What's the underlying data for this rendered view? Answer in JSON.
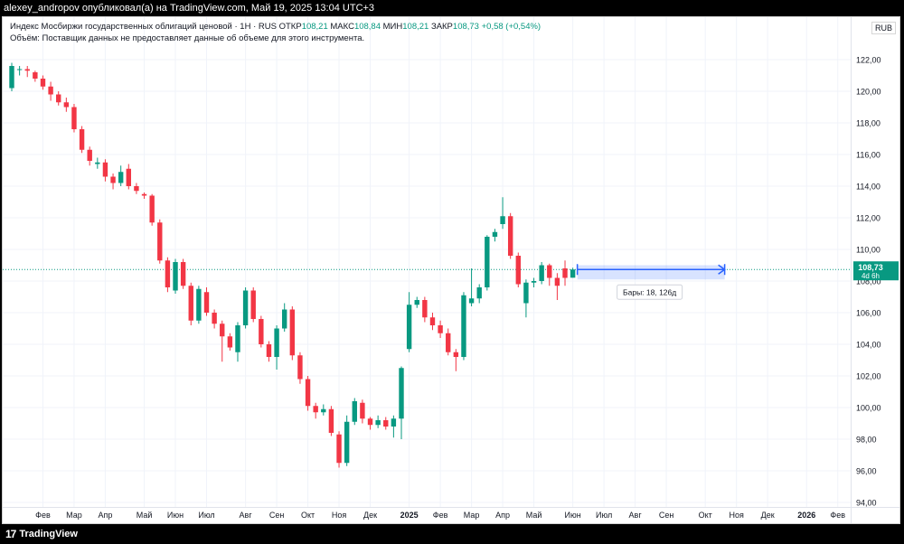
{
  "header": {
    "publish_line": "alexey_andropov опубликовал(а) на TradingView.com, Май 19, 2025 13:04 UTC+3"
  },
  "legend": {
    "title": "Индекс Мосбиржи государственных облигаций ценовой · 1Н · RUS",
    "open_label": "ОТКР",
    "open_value": "108,21",
    "high_label": "МАКС",
    "high_value": "108,84",
    "low_label": "МИН",
    "low_value": "108,21",
    "close_label": "ЗАКР",
    "close_value": "108,73",
    "change": "+0,58 (+0,54%)",
    "volume_note": "Объём: Поставщик данных не предоставляет данные об объеме для этого инструмента."
  },
  "currency": "RUB",
  "price_tag": {
    "value": "108,73",
    "time_left": "4d 6h"
  },
  "measure": {
    "label": "Бары: 18, 126д"
  },
  "footer": {
    "brand": "TradingView",
    "brand_mark": "17"
  },
  "colors": {
    "up": "#089981",
    "down": "#f23645",
    "grid": "#f0f3fa",
    "axis_text": "#131722",
    "measure": "#2962ff"
  },
  "chart_data": {
    "type": "candlestick",
    "timeframe": "1W",
    "y_axis": {
      "ylim": [
        94,
        124
      ],
      "ticks": [
        "94,00",
        "96,00",
        "98,00",
        "100,00",
        "102,00",
        "104,00",
        "106,00",
        "108,00",
        "110,00",
        "112,00",
        "114,00",
        "116,00",
        "118,00",
        "120,00",
        "122,00"
      ],
      "tick_values": [
        94,
        96,
        98,
        100,
        102,
        104,
        106,
        108,
        110,
        112,
        114,
        116,
        118,
        120,
        122
      ]
    },
    "x_axis": {
      "ticks": [
        "Фев",
        "Мар",
        "Апр",
        "Май",
        "Июн",
        "Июл",
        "Авг",
        "Сен",
        "Окт",
        "Ноя",
        "Дек",
        "2025",
        "Фев",
        "Мар",
        "Апр",
        "Май",
        "Июн",
        "Июл",
        "Авг",
        "Сен",
        "Окт",
        "Ноя",
        "Дек",
        "2026",
        "Фев"
      ],
      "tick_week_index": [
        4,
        8,
        12,
        17,
        21,
        25,
        30,
        34,
        38,
        42,
        46,
        51,
        55,
        59,
        63,
        67,
        72,
        76,
        80,
        84,
        89,
        93,
        97,
        102,
        106
      ]
    },
    "last_price": 108.73,
    "candles": [
      {
        "o": 120.2,
        "h": 121.8,
        "l": 120.0,
        "c": 121.6
      },
      {
        "o": 121.4,
        "h": 121.6,
        "l": 121.0,
        "c": 121.4
      },
      {
        "o": 121.4,
        "h": 121.6,
        "l": 120.9,
        "c": 121.3
      },
      {
        "o": 121.2,
        "h": 121.3,
        "l": 120.6,
        "c": 120.8
      },
      {
        "o": 120.8,
        "h": 121.0,
        "l": 120.1,
        "c": 120.3
      },
      {
        "o": 120.3,
        "h": 120.6,
        "l": 119.4,
        "c": 119.8
      },
      {
        "o": 119.8,
        "h": 120.0,
        "l": 119.1,
        "c": 119.3
      },
      {
        "o": 119.3,
        "h": 119.6,
        "l": 118.7,
        "c": 119.0
      },
      {
        "o": 119.0,
        "h": 119.2,
        "l": 117.4,
        "c": 117.6
      },
      {
        "o": 117.6,
        "h": 117.8,
        "l": 116.1,
        "c": 116.3
      },
      {
        "o": 116.3,
        "h": 116.5,
        "l": 115.3,
        "c": 115.6
      },
      {
        "o": 115.4,
        "h": 115.8,
        "l": 115.1,
        "c": 115.5
      },
      {
        "o": 115.5,
        "h": 115.7,
        "l": 114.3,
        "c": 114.6
      },
      {
        "o": 114.6,
        "h": 114.8,
        "l": 113.8,
        "c": 114.2
      },
      {
        "o": 114.2,
        "h": 115.3,
        "l": 114.0,
        "c": 114.9
      },
      {
        "o": 115.1,
        "h": 115.4,
        "l": 113.8,
        "c": 114.0
      },
      {
        "o": 114.0,
        "h": 114.2,
        "l": 113.5,
        "c": 113.7
      },
      {
        "o": 113.5,
        "h": 113.6,
        "l": 113.2,
        "c": 113.4
      },
      {
        "o": 113.4,
        "h": 113.5,
        "l": 111.5,
        "c": 111.7
      },
      {
        "o": 111.7,
        "h": 111.9,
        "l": 109.1,
        "c": 109.3
      },
      {
        "o": 109.3,
        "h": 109.5,
        "l": 107.3,
        "c": 107.6
      },
      {
        "o": 107.4,
        "h": 109.4,
        "l": 107.2,
        "c": 109.2
      },
      {
        "o": 109.2,
        "h": 109.4,
        "l": 107.5,
        "c": 107.7
      },
      {
        "o": 107.7,
        "h": 107.9,
        "l": 105.2,
        "c": 105.5
      },
      {
        "o": 105.5,
        "h": 107.7,
        "l": 105.3,
        "c": 107.5
      },
      {
        "o": 107.3,
        "h": 107.6,
        "l": 105.8,
        "c": 106.0
      },
      {
        "o": 106.0,
        "h": 106.2,
        "l": 105.0,
        "c": 105.3
      },
      {
        "o": 105.3,
        "h": 105.5,
        "l": 102.9,
        "c": 104.5
      },
      {
        "o": 104.5,
        "h": 104.7,
        "l": 103.6,
        "c": 103.8
      },
      {
        "o": 103.5,
        "h": 105.4,
        "l": 102.9,
        "c": 105.2
      },
      {
        "o": 105.2,
        "h": 107.6,
        "l": 105.0,
        "c": 107.4
      },
      {
        "o": 107.4,
        "h": 107.6,
        "l": 105.4,
        "c": 105.6
      },
      {
        "o": 105.6,
        "h": 105.8,
        "l": 103.8,
        "c": 104.0
      },
      {
        "o": 104.0,
        "h": 104.2,
        "l": 102.9,
        "c": 103.2
      },
      {
        "o": 103.2,
        "h": 105.2,
        "l": 102.4,
        "c": 105.0
      },
      {
        "o": 105.0,
        "h": 106.6,
        "l": 104.8,
        "c": 106.2
      },
      {
        "o": 106.2,
        "h": 106.4,
        "l": 103.0,
        "c": 103.3
      },
      {
        "o": 103.3,
        "h": 103.5,
        "l": 101.5,
        "c": 101.8
      },
      {
        "o": 101.8,
        "h": 102.0,
        "l": 99.8,
        "c": 100.1
      },
      {
        "o": 100.1,
        "h": 100.3,
        "l": 99.3,
        "c": 99.7
      },
      {
        "o": 99.7,
        "h": 100.2,
        "l": 99.5,
        "c": 99.9
      },
      {
        "o": 99.9,
        "h": 100.1,
        "l": 98.2,
        "c": 98.4
      },
      {
        "o": 98.3,
        "h": 98.5,
        "l": 96.2,
        "c": 96.5
      },
      {
        "o": 96.5,
        "h": 99.5,
        "l": 96.3,
        "c": 99.1
      },
      {
        "o": 99.1,
        "h": 100.6,
        "l": 98.9,
        "c": 100.4
      },
      {
        "o": 100.3,
        "h": 100.5,
        "l": 99.0,
        "c": 99.3
      },
      {
        "o": 99.3,
        "h": 99.4,
        "l": 98.6,
        "c": 98.9
      },
      {
        "o": 98.9,
        "h": 99.5,
        "l": 98.7,
        "c": 99.2
      },
      {
        "o": 99.2,
        "h": 99.4,
        "l": 98.6,
        "c": 98.8
      },
      {
        "o": 98.8,
        "h": 99.5,
        "l": 98.1,
        "c": 99.3
      },
      {
        "o": 99.3,
        "h": 102.6,
        "l": 98.0,
        "c": 102.5
      },
      {
        "o": 103.7,
        "h": 107.3,
        "l": 103.5,
        "c": 106.5
      },
      {
        "o": 106.5,
        "h": 107.0,
        "l": 106.3,
        "c": 106.8
      },
      {
        "o": 106.8,
        "h": 107.0,
        "l": 105.4,
        "c": 105.7
      },
      {
        "o": 105.7,
        "h": 106.0,
        "l": 104.9,
        "c": 105.2
      },
      {
        "o": 105.2,
        "h": 105.5,
        "l": 104.4,
        "c": 104.7
      },
      {
        "o": 104.7,
        "h": 105.0,
        "l": 103.3,
        "c": 103.5
      },
      {
        "o": 103.5,
        "h": 103.7,
        "l": 102.3,
        "c": 103.2
      },
      {
        "o": 103.2,
        "h": 107.3,
        "l": 103.0,
        "c": 107.1
      },
      {
        "o": 106.6,
        "h": 108.8,
        "l": 106.4,
        "c": 106.9
      },
      {
        "o": 106.9,
        "h": 107.8,
        "l": 106.6,
        "c": 107.6
      },
      {
        "o": 107.6,
        "h": 110.9,
        "l": 107.4,
        "c": 110.8
      },
      {
        "o": 110.8,
        "h": 111.3,
        "l": 110.5,
        "c": 111.1
      },
      {
        "o": 111.6,
        "h": 113.3,
        "l": 111.3,
        "c": 112.1
      },
      {
        "o": 112.1,
        "h": 112.3,
        "l": 109.4,
        "c": 109.6
      },
      {
        "o": 109.6,
        "h": 109.8,
        "l": 107.6,
        "c": 107.8
      },
      {
        "o": 106.6,
        "h": 108.1,
        "l": 105.7,
        "c": 107.9
      },
      {
        "o": 107.9,
        "h": 108.2,
        "l": 107.6,
        "c": 108.0
      },
      {
        "o": 108.0,
        "h": 109.2,
        "l": 107.8,
        "c": 109.0
      },
      {
        "o": 109.0,
        "h": 109.1,
        "l": 107.7,
        "c": 108.2
      },
      {
        "o": 108.2,
        "h": 108.5,
        "l": 106.8,
        "c": 107.7
      },
      {
        "o": 108.8,
        "h": 109.3,
        "l": 107.7,
        "c": 108.2
      },
      {
        "o": 108.21,
        "h": 108.84,
        "l": 108.21,
        "c": 108.73
      }
    ]
  }
}
